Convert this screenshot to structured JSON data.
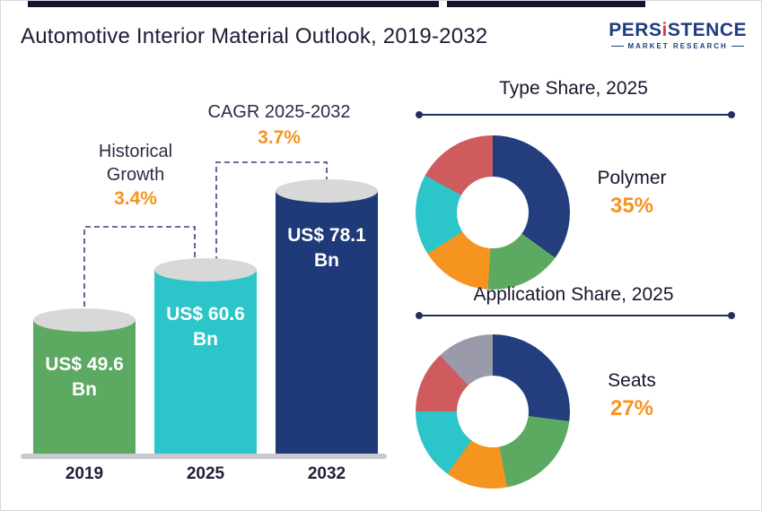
{
  "header": {
    "title": "Automotive Interior Material Outlook, 2019-2032",
    "logo": {
      "brand_pre": "PERS",
      "brand_i": "i",
      "brand_post": "STENCE",
      "tagline": "MARKET RESEARCH"
    }
  },
  "accent_colors": {
    "orange": "#f5941e",
    "navy": "#233d7d",
    "dashed_line": "#35437f",
    "bar_cap": "#d8d8d8"
  },
  "bar_chart": {
    "historical": {
      "label_line1": "Historical",
      "label_line2": "Growth",
      "value": "3.4%"
    },
    "cagr": {
      "label": "CAGR 2025-2032",
      "value": "3.7%"
    },
    "bars": [
      {
        "year": "2019",
        "amount": "US$ 49.6",
        "unit": "Bn",
        "value": 49.6,
        "color": "#5ca961"
      },
      {
        "year": "2025",
        "amount": "US$ 60.6",
        "unit": "Bn",
        "value": 60.6,
        "color": "#2cc5c9"
      },
      {
        "year": "2032",
        "amount": "US$ 78.1",
        "unit": "Bn",
        "value": 78.1,
        "color": "#1f3a78"
      }
    ]
  },
  "donut_charts": [
    {
      "title": "Type Share, 2025",
      "callout": {
        "label": "Polymer",
        "value": "35%"
      },
      "segments": [
        {
          "label": "Polymer",
          "value": 35,
          "color": "#233d7d"
        },
        {
          "label": "unlabeled-green",
          "value": 16,
          "color": "#5ca961"
        },
        {
          "label": "unlabeled-orange",
          "value": 15,
          "color": "#f5941e"
        },
        {
          "label": "unlabeled-teal",
          "value": 17,
          "color": "#2cc5c9"
        },
        {
          "label": "unlabeled-red",
          "value": 17,
          "color": "#cf5b5e"
        }
      ]
    },
    {
      "title": "Application Share, 2025",
      "callout": {
        "label": "Seats",
        "value": "27%"
      },
      "segments": [
        {
          "label": "Seats",
          "value": 27,
          "color": "#233d7d"
        },
        {
          "label": "unlabeled-green",
          "value": 20,
          "color": "#5ca961"
        },
        {
          "label": "unlabeled-orange",
          "value": 13,
          "color": "#f5941e"
        },
        {
          "label": "unlabeled-teal",
          "value": 15,
          "color": "#2cc5c9"
        },
        {
          "label": "unlabeled-red",
          "value": 13,
          "color": "#cf5b5e"
        },
        {
          "label": "unlabeled-gray",
          "value": 12,
          "color": "#9b9aaa"
        }
      ]
    }
  ],
  "chart_data": [
    {
      "type": "bar",
      "title": "Automotive Interior Material Outlook, 2019-2032",
      "categories": [
        "2019",
        "2025",
        "2032"
      ],
      "values": [
        49.6,
        60.6,
        78.1
      ],
      "unit": "US$ Bn",
      "data_labels": [
        "US$ 49.6 Bn",
        "US$ 60.6 Bn",
        "US$ 78.1 Bn"
      ],
      "annotations": [
        {
          "label": "Historical Growth",
          "display": "3.4%",
          "from": "2019",
          "to": "2025"
        },
        {
          "label": "CAGR 2025-2032",
          "display": "3.7%",
          "from": "2025",
          "to": "2032"
        }
      ],
      "legend": "none",
      "grid": false
    },
    {
      "type": "pie",
      "subtype": "donut",
      "title": "Type Share, 2025",
      "labels": [
        "Polymer",
        "unlabeled-green",
        "unlabeled-orange",
        "unlabeled-teal",
        "unlabeled-red"
      ],
      "values": [
        35,
        16,
        15,
        17,
        17
      ],
      "colors": [
        "#233d7d",
        "#5ca961",
        "#f5941e",
        "#2cc5c9",
        "#cf5b5e"
      ],
      "labeled_slice": {
        "label": "Polymer",
        "display": "35%"
      },
      "note": "only the Polymer slice is labeled; other values estimated from arc angles"
    },
    {
      "type": "pie",
      "subtype": "donut",
      "title": "Application Share, 2025",
      "labels": [
        "Seats",
        "unlabeled-green",
        "unlabeled-orange",
        "unlabeled-teal",
        "unlabeled-red",
        "unlabeled-gray"
      ],
      "values": [
        27,
        20,
        13,
        15,
        13,
        12
      ],
      "colors": [
        "#233d7d",
        "#5ca961",
        "#f5941e",
        "#2cc5c9",
        "#cf5b5e",
        "#9b9aaa"
      ],
      "labeled_slice": {
        "label": "Seats",
        "display": "27%"
      },
      "note": "only the Seats slice is labeled; other values estimated from arc angles"
    }
  ]
}
